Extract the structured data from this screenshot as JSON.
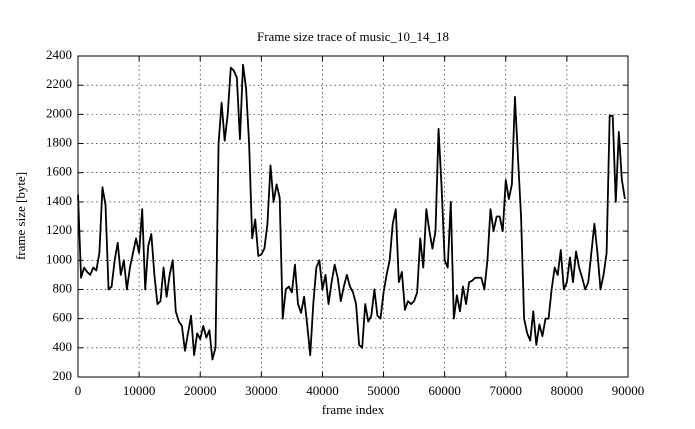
{
  "chart_data": {
    "type": "line",
    "title": "Frame size trace of music_10_14_18",
    "x_label": "frame index",
    "y_label": "frame size [byte]",
    "x": [
      0,
      500,
      1000,
      1500,
      2000,
      2500,
      3000,
      3500,
      4000,
      4500,
      5000,
      5500,
      6000,
      6500,
      7000,
      7500,
      8000,
      8500,
      9000,
      9500,
      10000,
      10500,
      11000,
      11500,
      12000,
      12500,
      13000,
      13500,
      14000,
      14500,
      15000,
      15500,
      16000,
      16500,
      17000,
      17500,
      18000,
      18500,
      19000,
      19500,
      20000,
      20500,
      21000,
      21500,
      22000,
      22500,
      23000,
      23500,
      24000,
      24500,
      25000,
      25500,
      26000,
      26500,
      27000,
      27500,
      28000,
      28500,
      29000,
      29500,
      30000,
      30500,
      31000,
      31500,
      32000,
      32500,
      33000,
      33500,
      34000,
      34500,
      35000,
      35500,
      36000,
      36500,
      37000,
      37500,
      38000,
      38500,
      39000,
      39500,
      40000,
      40500,
      41000,
      41500,
      42000,
      42500,
      43000,
      43500,
      44000,
      44500,
      45000,
      45500,
      46000,
      46500,
      47000,
      47500,
      48000,
      48500,
      49000,
      49500,
      50000,
      50500,
      51000,
      51500,
      52000,
      52500,
      53000,
      53500,
      54000,
      54500,
      55000,
      55500,
      56000,
      56500,
      57000,
      57500,
      58000,
      58500,
      59000,
      59500,
      60000,
      60500,
      61000,
      61500,
      62000,
      62500,
      63000,
      63500,
      64000,
      64500,
      65000,
      66000,
      66500,
      67000,
      67500,
      68000,
      68500,
      69000,
      69500,
      70000,
      70500,
      71000,
      71500,
      72000,
      72500,
      73000,
      73500,
      74000,
      74500,
      75000,
      75500,
      76000,
      76500,
      77000,
      77500,
      78000,
      78500,
      79000,
      79500,
      80000,
      80500,
      81000,
      81500,
      82000,
      82500,
      83000,
      83500,
      84000,
      84500,
      85000,
      85500,
      86000,
      86500,
      87000,
      87500,
      88000,
      88500,
      89000,
      89500
    ],
    "series": [
      {
        "name": "frame size",
        "color": "#000000",
        "values": [
          1450,
          880,
          950,
          920,
          900,
          950,
          930,
          1050,
          1500,
          1380,
          800,
          820,
          1000,
          1120,
          900,
          1000,
          800,
          950,
          1050,
          1150,
          1050,
          1350,
          800,
          1100,
          1180,
          900,
          700,
          720,
          950,
          750,
          900,
          1000,
          650,
          580,
          550,
          380,
          500,
          620,
          350,
          500,
          460,
          550,
          470,
          520,
          320,
          400,
          1800,
          2080,
          1820,
          2000,
          2320,
          2300,
          2250,
          1830,
          2340,
          2180,
          1800,
          1150,
          1280,
          1030,
          1040,
          1080,
          1250,
          1650,
          1400,
          1520,
          1430,
          600,
          800,
          820,
          780,
          970,
          700,
          640,
          750,
          560,
          350,
          700,
          950,
          1000,
          800,
          900,
          700,
          850,
          970,
          880,
          720,
          820,
          900,
          820,
          780,
          700,
          420,
          400,
          700,
          580,
          620,
          800,
          620,
          600,
          780,
          900,
          1000,
          1250,
          1350,
          850,
          920,
          660,
          720,
          700,
          720,
          780,
          1150,
          950,
          1350,
          1200,
          1080,
          1200,
          1900,
          1500,
          1000,
          950,
          1400,
          600,
          760,
          650,
          820,
          700,
          850,
          860,
          880,
          880,
          800,
          1000,
          1350,
          1200,
          1300,
          1300,
          1200,
          1550,
          1420,
          1520,
          2120,
          1700,
          1300,
          600,
          500,
          450,
          650,
          420,
          560,
          480,
          600,
          600,
          800,
          950,
          900,
          1070,
          800,
          850,
          1020,
          850,
          1060,
          950,
          880,
          800,
          850,
          1050,
          1250,
          1050,
          800,
          900,
          1050,
          1990,
          1990,
          1400,
          1880,
          1550,
          1420
        ]
      }
    ],
    "xlim": [
      0,
      90000
    ],
    "ylim": [
      200,
      2400
    ],
    "xticks": [
      0,
      10000,
      20000,
      30000,
      40000,
      50000,
      60000,
      70000,
      80000,
      90000
    ],
    "yticks": [
      200,
      400,
      600,
      800,
      1000,
      1200,
      1400,
      1600,
      1800,
      2000,
      2200,
      2400
    ],
    "grid": true
  }
}
